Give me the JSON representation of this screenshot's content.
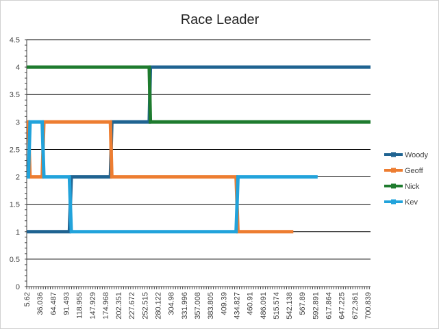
{
  "chart_data": {
    "type": "line",
    "title": "Race Leader",
    "xlabel": "",
    "ylabel": "",
    "ylim": [
      0,
      4.5
    ],
    "y_ticks": [
      "0",
      "0.5",
      "1",
      "1.5",
      "2",
      "2.5",
      "3",
      "3.5",
      "4",
      "4.5"
    ],
    "x_tick_labels": [
      "5.62",
      "36.036",
      "64.487",
      "91.493",
      "118.955",
      "147.929",
      "174.968",
      "202.351",
      "227.672",
      "252.515",
      "280.122",
      "304.98",
      "331.996",
      "357.008",
      "383.805",
      "409.39",
      "434.827",
      "460.91",
      "486.091",
      "515.574",
      "542.138",
      "567.89",
      "592.891",
      "617.864",
      "647.225",
      "672.361",
      "700.839"
    ],
    "grid": "horizontal",
    "legend_position": "right",
    "series": [
      {
        "name": "Woody",
        "color": "#1F6391",
        "points": [
          [
            5.62,
            1
          ],
          [
            93.5,
            1
          ],
          [
            97.5,
            2
          ],
          [
            178,
            2
          ],
          [
            181,
            3
          ],
          [
            258,
            3
          ],
          [
            260.5,
            4
          ],
          [
            714,
            4
          ]
        ]
      },
      {
        "name": "Geoff",
        "color": "#ED7D31",
        "points": [
          [
            5.62,
            3
          ],
          [
            9,
            3
          ],
          [
            12.5,
            2
          ],
          [
            37.5,
            2
          ],
          [
            41,
            3
          ],
          [
            178,
            3
          ],
          [
            181,
            2
          ],
          [
            437,
            2
          ],
          [
            441,
            1
          ],
          [
            555,
            1
          ]
        ]
      },
      {
        "name": "Nick",
        "color": "#1E7B2E",
        "points": [
          [
            5.62,
            4
          ],
          [
            258,
            4
          ],
          [
            260.5,
            3
          ],
          [
            714,
            3
          ]
        ]
      },
      {
        "name": "Kev",
        "color": "#22A3DB",
        "points": [
          [
            5.62,
            2
          ],
          [
            9,
            2
          ],
          [
            12.5,
            3
          ],
          [
            37.5,
            3
          ],
          [
            41,
            2
          ],
          [
            93.5,
            2
          ],
          [
            97.5,
            1
          ],
          [
            437,
            1
          ],
          [
            441,
            2
          ],
          [
            605,
            2
          ]
        ]
      }
    ]
  }
}
